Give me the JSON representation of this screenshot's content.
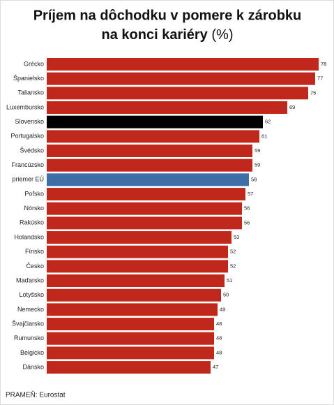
{
  "chart_data": {
    "type": "hbar",
    "title": "Príjem na dôchodku v pomere k zárobku",
    "title_line2": "na konci kariéry",
    "title_unit": "(%)",
    "source": "PRAMEŇ: Eurostat",
    "categories": [
      "Grécko",
      "Španielsko",
      "Taliansko",
      "Luxembursko",
      "Slovensko",
      "Portugalsko",
      "Švédsko",
      "Francúzsko",
      "priemer EÚ",
      "Poľsko",
      "Nórsko",
      "Rakúsko",
      "Holandsko",
      "Fínsko",
      "Česko",
      "Maďarsko",
      "Lotyšsko",
      "Nemecko",
      "Švajčiarsko",
      "Rumunsko",
      "Belgicko",
      "Dánsko"
    ],
    "values": [
      78,
      77,
      75,
      69,
      62,
      61,
      59,
      59,
      58,
      57,
      56,
      56,
      53,
      52,
      52,
      51,
      50,
      49,
      48,
      48,
      48,
      47
    ],
    "colors": [
      "#c0281c",
      "#c0281c",
      "#c0281c",
      "#c0281c",
      "#000000",
      "#c0281c",
      "#c0281c",
      "#c0281c",
      "#3d6ea5",
      "#c0281c",
      "#c0281c",
      "#c0281c",
      "#c0281c",
      "#c0281c",
      "#c0281c",
      "#c0281c",
      "#c0281c",
      "#c0281c",
      "#c0281c",
      "#c0281c",
      "#c0281c",
      "#c0281c"
    ]
  }
}
